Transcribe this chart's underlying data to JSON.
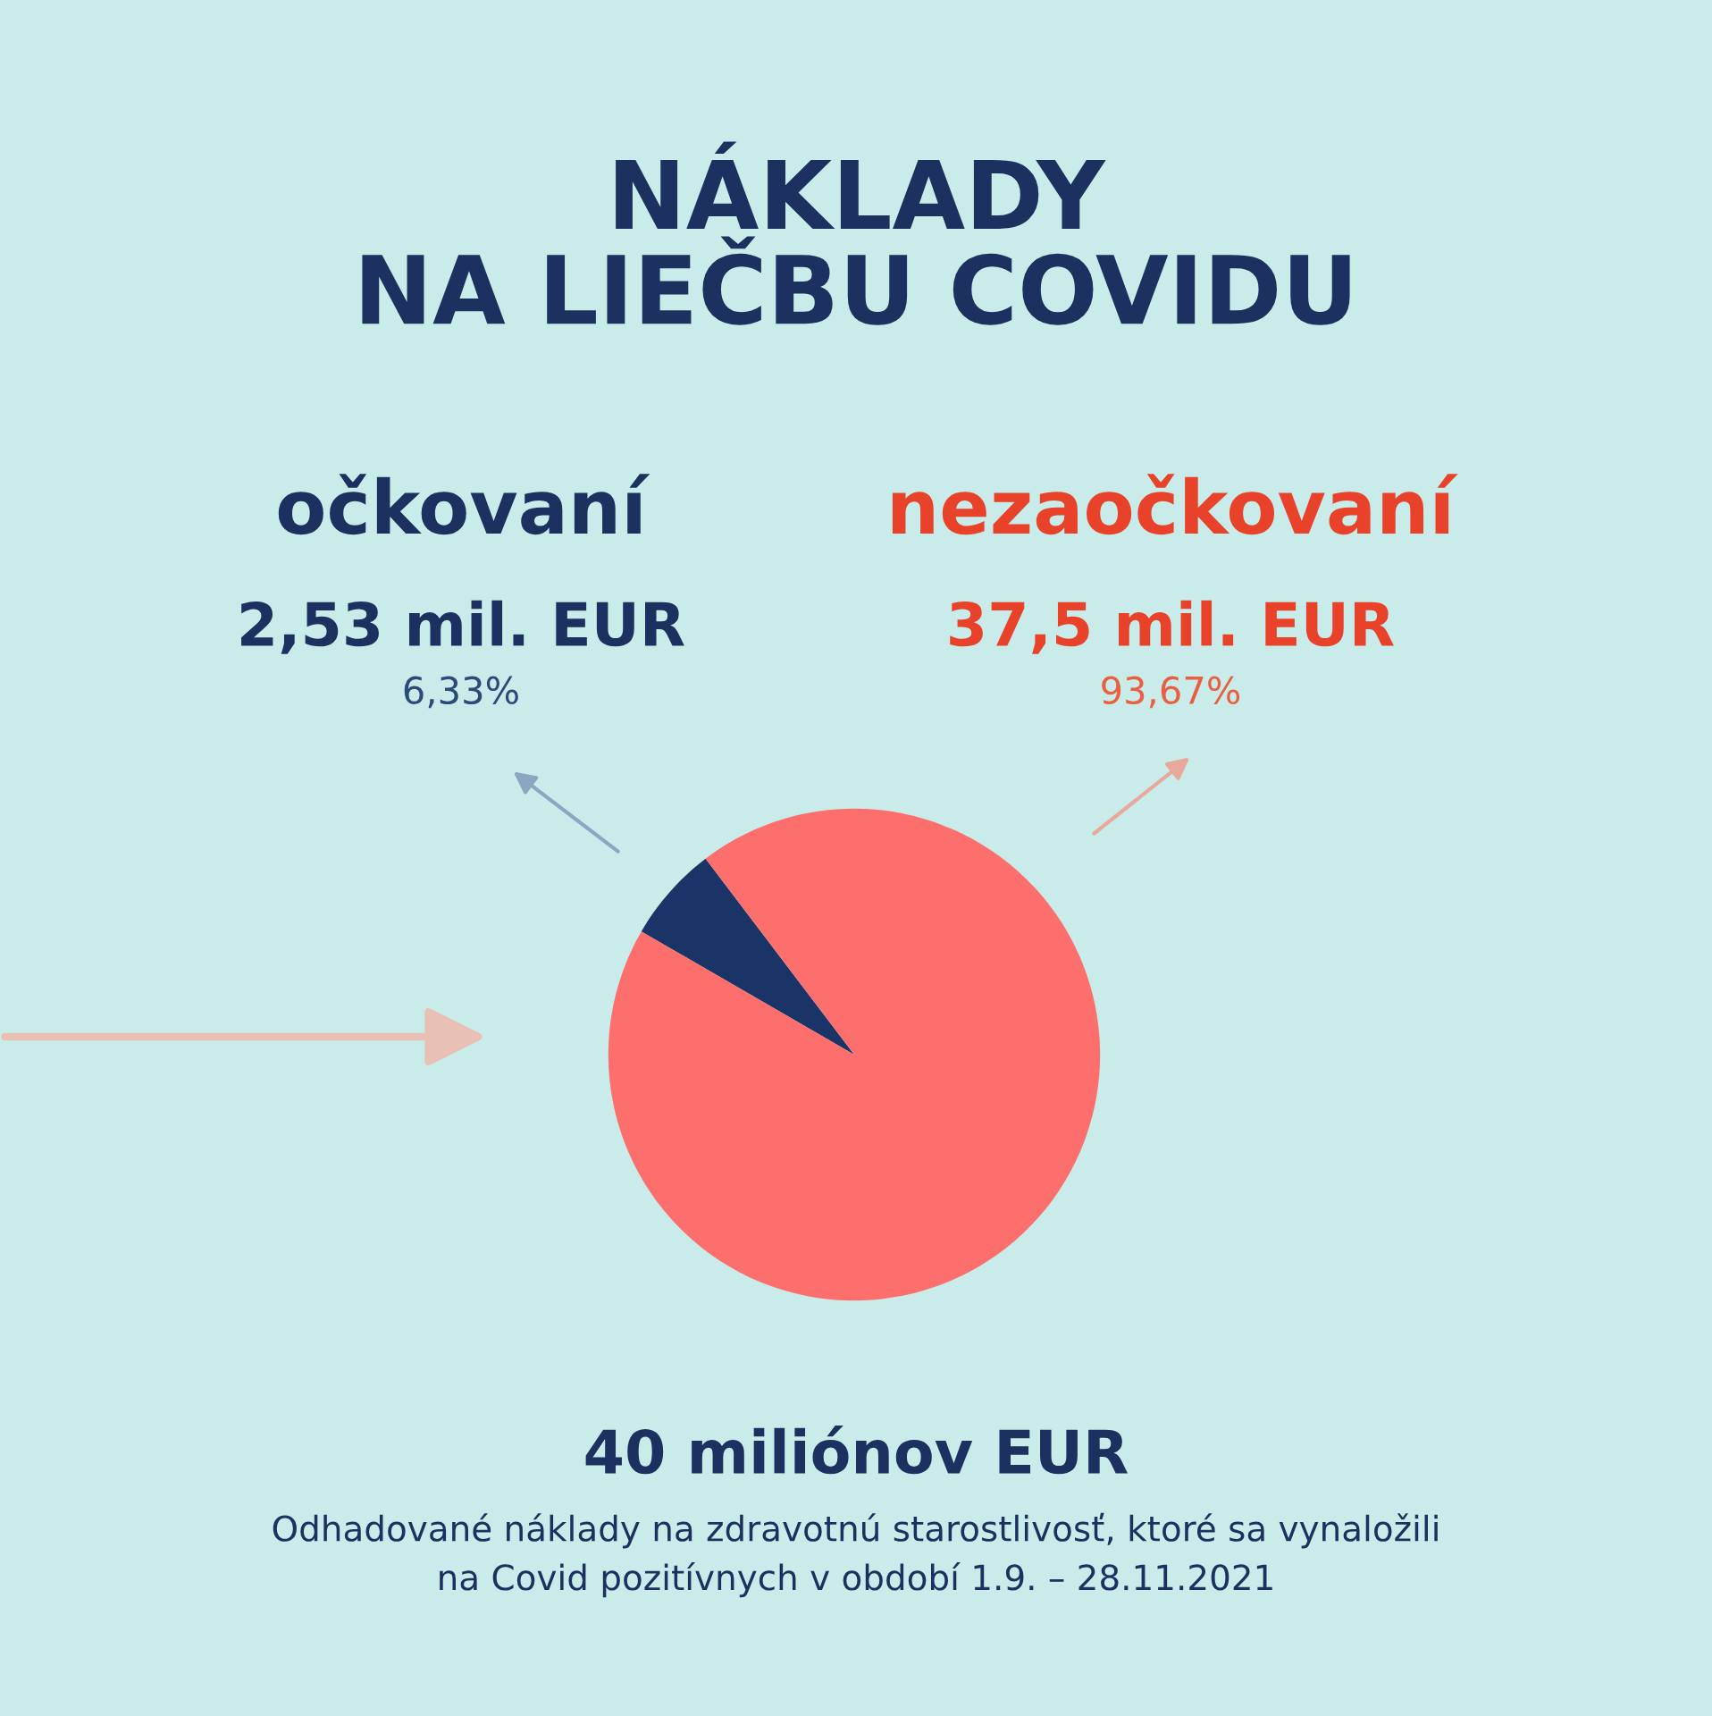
{
  "chart_data": {
    "type": "pie",
    "title": "NÁKLADY\nNA LIEČBU COVIDU",
    "categories": [
      "očkovaní",
      "nezaočkovaní"
    ],
    "values": [
      2.53,
      37.5
    ],
    "colors": [
      "#1b3467",
      "#fd6f6c"
    ],
    "value_labels": [
      "2,53 mil. EUR",
      "37,5 mil. EUR"
    ],
    "annotations": [
      {
        "text": "6,33%",
        "x": "očkovaní"
      },
      {
        "text": "93,67%",
        "x": "nezaočkovaní"
      },
      "40 miliónov EUR",
      "Odhadované náklady na zdravotnú starostlivosť, ktoré sa vynaložili\nna Covid pozitívnych v období 1.9. – 28.11.2021"
    ],
    "legend": false
  }
}
